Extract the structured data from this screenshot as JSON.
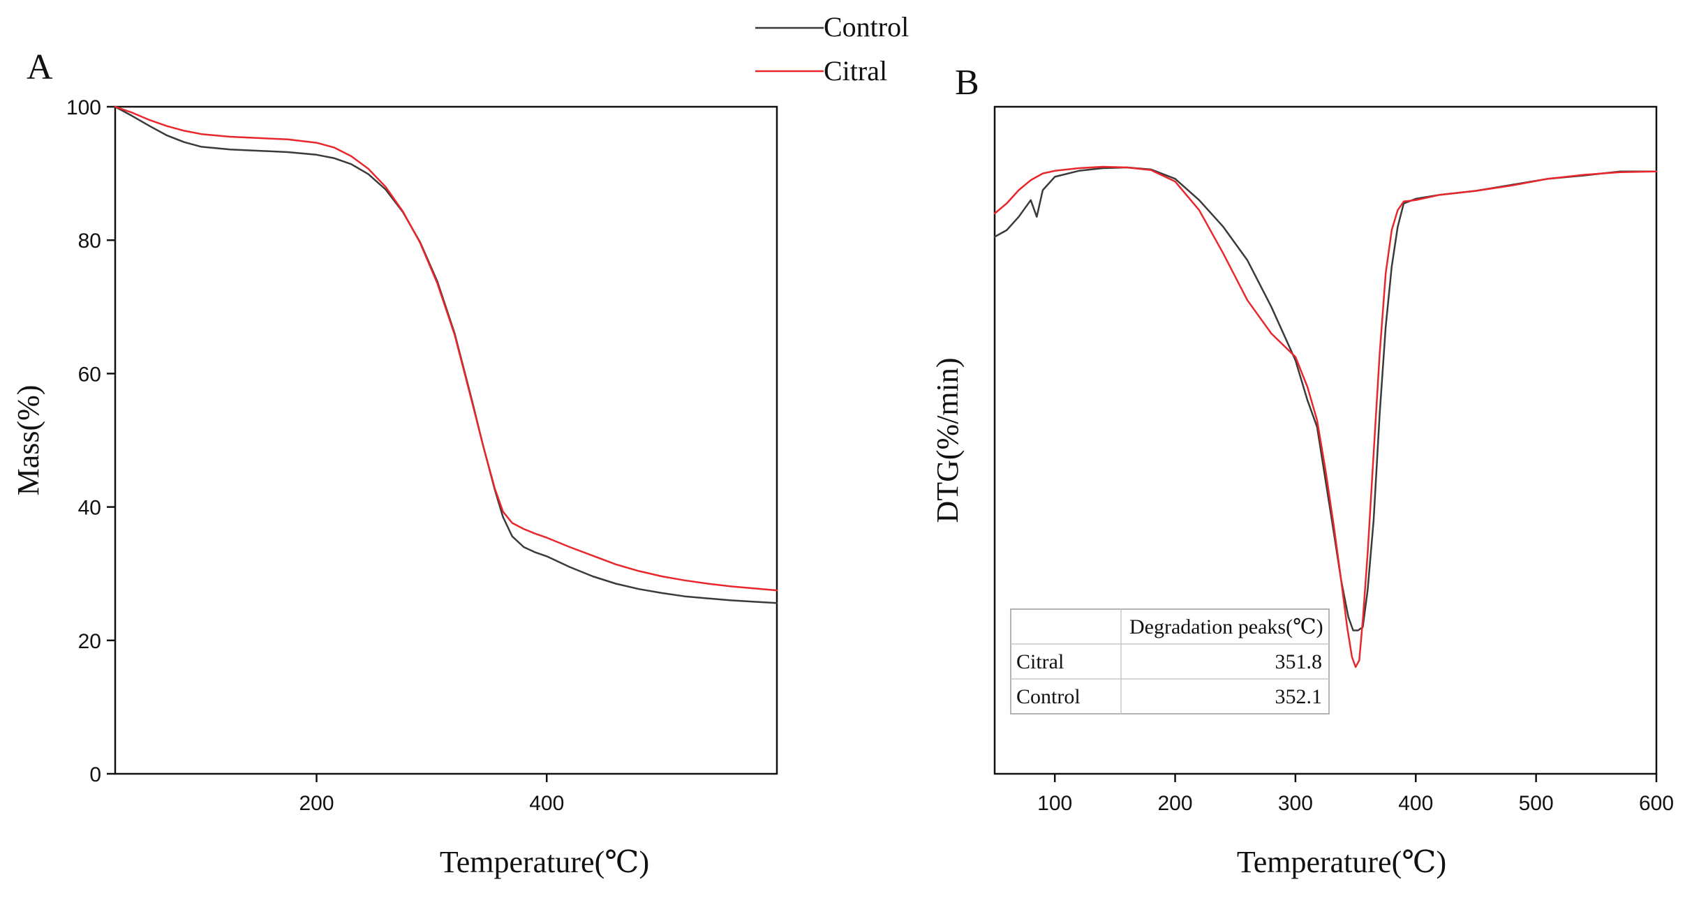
{
  "legend": {
    "entries": [
      {
        "label": "Control",
        "color": "#3a3a3a"
      },
      {
        "label": "Citral",
        "color": "#e8262b"
      }
    ]
  },
  "panels": {
    "A": {
      "label": "A"
    },
    "B": {
      "label": "B"
    }
  },
  "table": {
    "header": [
      "",
      "Degradation peaks(℃)"
    ],
    "rows": [
      [
        "Citral",
        "351.8"
      ],
      [
        "Control",
        "352.1"
      ]
    ]
  },
  "chart_data": [
    {
      "id": "A",
      "type": "line",
      "title": "",
      "xlabel": "Temperature(℃)",
      "ylabel": "Mass(%)",
      "xlim": [
        25,
        600
      ],
      "ylim": [
        0,
        100
      ],
      "xticks": [
        200,
        400
      ],
      "yticks": [
        0,
        20,
        40,
        60,
        80,
        100
      ],
      "grid": false,
      "series": [
        {
          "name": "Control",
          "color": "#3a3a3a",
          "x": [
            25,
            40,
            55,
            70,
            85,
            100,
            125,
            150,
            175,
            200,
            215,
            230,
            245,
            260,
            275,
            290,
            305,
            320,
            335,
            345,
            355,
            362,
            370,
            380,
            390,
            400,
            420,
            440,
            460,
            480,
            500,
            520,
            540,
            560,
            580,
            600
          ],
          "y": [
            100,
            98.6,
            97.1,
            95.7,
            94.7,
            94.0,
            93.6,
            93.4,
            93.2,
            92.8,
            92.3,
            91.4,
            89.9,
            87.6,
            84.2,
            79.7,
            73.8,
            66.0,
            56.0,
            49.0,
            42.5,
            38.5,
            35.6,
            34.0,
            33.2,
            32.6,
            31.0,
            29.6,
            28.5,
            27.7,
            27.1,
            26.6,
            26.3,
            26.0,
            25.8,
            25.6
          ]
        },
        {
          "name": "Citral",
          "color": "#e8262b",
          "x": [
            25,
            40,
            55,
            70,
            85,
            100,
            125,
            150,
            175,
            200,
            215,
            230,
            245,
            260,
            275,
            290,
            305,
            320,
            335,
            345,
            355,
            362,
            370,
            380,
            390,
            400,
            420,
            440,
            460,
            480,
            500,
            520,
            540,
            560,
            580,
            600
          ],
          "y": [
            100,
            99.1,
            98.0,
            97.1,
            96.4,
            95.9,
            95.5,
            95.3,
            95.1,
            94.6,
            93.9,
            92.6,
            90.7,
            88.0,
            84.3,
            79.6,
            73.5,
            65.8,
            55.8,
            49.0,
            42.7,
            39.3,
            37.6,
            36.7,
            36.0,
            35.4,
            34.0,
            32.7,
            31.4,
            30.4,
            29.6,
            29.0,
            28.5,
            28.1,
            27.8,
            27.5
          ]
        }
      ]
    },
    {
      "id": "B",
      "type": "line",
      "title": "",
      "xlabel": "Temperature(℃)",
      "ylabel": "DTG(%/min)",
      "xlim": [
        50,
        600
      ],
      "ylim": [
        0,
        100
      ],
      "xticks": [
        100,
        200,
        300,
        400,
        500,
        600
      ],
      "yticks": [],
      "grid": false,
      "series": [
        {
          "name": "Control",
          "color": "#3a3a3a",
          "x": [
            50,
            60,
            70,
            80,
            85,
            90,
            100,
            120,
            140,
            160,
            180,
            200,
            220,
            240,
            260,
            280,
            300,
            310,
            318,
            325,
            332,
            338,
            344,
            348,
            352,
            356,
            360,
            365,
            370,
            375,
            380,
            385,
            390,
            400,
            420,
            450,
            480,
            510,
            540,
            570,
            600
          ],
          "y": [
            80.5,
            81.5,
            83.5,
            86.0,
            83.5,
            87.5,
            89.5,
            90.4,
            90.8,
            90.9,
            90.6,
            89.2,
            86.0,
            82.0,
            77.0,
            70.0,
            62.0,
            56.0,
            52.0,
            44.0,
            36.0,
            29.0,
            23.5,
            21.5,
            21.5,
            22.0,
            27.5,
            38.0,
            54.0,
            67.0,
            76.0,
            82.0,
            85.5,
            86.2,
            86.8,
            87.4,
            88.3,
            89.2,
            89.7,
            90.3,
            90.3
          ]
        },
        {
          "name": "Citral",
          "color": "#e8262b",
          "x": [
            50,
            60,
            70,
            80,
            90,
            100,
            120,
            140,
            160,
            180,
            200,
            220,
            240,
            260,
            280,
            300,
            310,
            318,
            325,
            332,
            338,
            343,
            347,
            350,
            353,
            356,
            360,
            365,
            370,
            375,
            380,
            385,
            390,
            400,
            420,
            450,
            480,
            510,
            540,
            570,
            600
          ],
          "y": [
            84.0,
            85.5,
            87.5,
            89.0,
            90.0,
            90.4,
            90.8,
            91.0,
            90.9,
            90.5,
            88.8,
            84.5,
            78.0,
            71.0,
            66.0,
            62.5,
            58.0,
            53.0,
            45.5,
            37.0,
            29.0,
            22.0,
            17.5,
            16.0,
            17.0,
            23.0,
            33.0,
            48.0,
            63.0,
            75.0,
            81.5,
            84.5,
            85.8,
            86.0,
            86.8,
            87.4,
            88.2,
            89.2,
            89.8,
            90.2,
            90.3
          ]
        }
      ]
    }
  ]
}
